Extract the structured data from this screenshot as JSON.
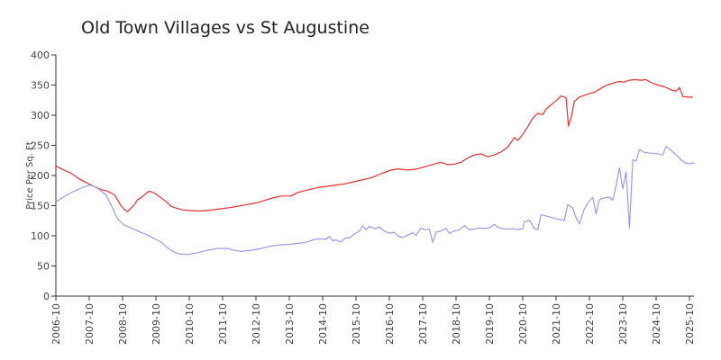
{
  "chart_data": {
    "type": "line",
    "title": "Old Town Villages vs St Augustine",
    "ylabel": "Price Per Sq. Ft",
    "xlabel": "",
    "ylim": [
      0,
      400
    ],
    "yticks": [
      0,
      50,
      100,
      150,
      200,
      250,
      300,
      350,
      400
    ],
    "xlim": [
      2006.75,
      2025.9
    ],
    "xticks": [
      "2006-10",
      "2007-10",
      "2008-10",
      "2009-10",
      "2010-10",
      "2011-10",
      "2012-10",
      "2013-10",
      "2014-10",
      "2015-10",
      "2016-10",
      "2017-10",
      "2018-10",
      "2019-10",
      "2020-10",
      "2021-10",
      "2022-10",
      "2023-10",
      "2024-10",
      "2025-10"
    ],
    "series": [
      {
        "color": "#e8302f",
        "points": [
          [
            2006.75,
            216
          ],
          [
            2006.95,
            210
          ],
          [
            2007.2,
            204
          ],
          [
            2007.4,
            196
          ],
          [
            2007.6,
            190
          ],
          [
            2007.85,
            183
          ],
          [
            2008.1,
            177
          ],
          [
            2008.3,
            174
          ],
          [
            2008.5,
            168
          ],
          [
            2008.6,
            160
          ],
          [
            2008.7,
            150
          ],
          [
            2008.8,
            144
          ],
          [
            2008.9,
            140
          ],
          [
            2009.0,
            146
          ],
          [
            2009.1,
            151
          ],
          [
            2009.2,
            160
          ],
          [
            2009.3,
            163
          ],
          [
            2009.45,
            170
          ],
          [
            2009.55,
            174
          ],
          [
            2009.7,
            171
          ],
          [
            2009.85,
            165
          ],
          [
            2010.05,
            157
          ],
          [
            2010.2,
            149
          ],
          [
            2010.35,
            146
          ],
          [
            2010.55,
            143
          ],
          [
            2010.75,
            142
          ],
          [
            2011.0,
            141
          ],
          [
            2011.3,
            142
          ],
          [
            2011.6,
            144
          ],
          [
            2012.0,
            147
          ],
          [
            2012.4,
            151
          ],
          [
            2012.8,
            155
          ],
          [
            2013.2,
            162
          ],
          [
            2013.5,
            166
          ],
          [
            2013.8,
            166
          ],
          [
            2014.0,
            172
          ],
          [
            2014.3,
            176
          ],
          [
            2014.6,
            180
          ],
          [
            2015.0,
            183
          ],
          [
            2015.4,
            186
          ],
          [
            2015.8,
            191
          ],
          [
            2016.2,
            196
          ],
          [
            2016.5,
            203
          ],
          [
            2016.8,
            209
          ],
          [
            2017.0,
            211
          ],
          [
            2017.3,
            209
          ],
          [
            2017.6,
            211
          ],
          [
            2017.9,
            216
          ],
          [
            2018.1,
            219
          ],
          [
            2018.3,
            222
          ],
          [
            2018.5,
            218
          ],
          [
            2018.7,
            219
          ],
          [
            2018.9,
            222
          ],
          [
            2019.1,
            229
          ],
          [
            2019.3,
            234
          ],
          [
            2019.5,
            236
          ],
          [
            2019.7,
            231
          ],
          [
            2019.9,
            234
          ],
          [
            2020.1,
            239
          ],
          [
            2020.3,
            247
          ],
          [
            2020.5,
            263
          ],
          [
            2020.6,
            258
          ],
          [
            2020.75,
            268
          ],
          [
            2020.9,
            281
          ],
          [
            2021.05,
            295
          ],
          [
            2021.2,
            303
          ],
          [
            2021.35,
            301
          ],
          [
            2021.45,
            310
          ],
          [
            2021.6,
            317
          ],
          [
            2021.75,
            324
          ],
          [
            2021.9,
            332
          ],
          [
            2022.05,
            329
          ],
          [
            2022.12,
            282
          ],
          [
            2022.2,
            296
          ],
          [
            2022.3,
            323
          ],
          [
            2022.45,
            330
          ],
          [
            2022.6,
            333
          ],
          [
            2022.75,
            336
          ],
          [
            2022.9,
            338
          ],
          [
            2023.05,
            343
          ],
          [
            2023.2,
            348
          ],
          [
            2023.35,
            351
          ],
          [
            2023.5,
            354
          ],
          [
            2023.65,
            356
          ],
          [
            2023.8,
            355
          ],
          [
            2023.95,
            358
          ],
          [
            2024.1,
            359
          ],
          [
            2024.3,
            358
          ],
          [
            2024.45,
            359
          ],
          [
            2024.6,
            354
          ],
          [
            2024.8,
            350
          ],
          [
            2025.0,
            347
          ],
          [
            2025.2,
            342
          ],
          [
            2025.35,
            340
          ],
          [
            2025.45,
            346
          ],
          [
            2025.55,
            331
          ],
          [
            2025.7,
            330
          ],
          [
            2025.85,
            330
          ]
        ]
      },
      {
        "color": "#9a9aee",
        "points": [
          [
            2006.75,
            156
          ],
          [
            2007.0,
            165
          ],
          [
            2007.3,
            174
          ],
          [
            2007.55,
            180
          ],
          [
            2007.75,
            184
          ],
          [
            2007.9,
            182
          ],
          [
            2008.05,
            177
          ],
          [
            2008.25,
            168
          ],
          [
            2008.4,
            152
          ],
          [
            2008.5,
            140
          ],
          [
            2008.6,
            128
          ],
          [
            2008.8,
            118
          ],
          [
            2009.0,
            113
          ],
          [
            2009.25,
            107
          ],
          [
            2009.5,
            101
          ],
          [
            2009.75,
            94
          ],
          [
            2009.95,
            88
          ],
          [
            2010.1,
            80
          ],
          [
            2010.25,
            74
          ],
          [
            2010.45,
            70
          ],
          [
            2010.7,
            69
          ],
          [
            2011.0,
            72
          ],
          [
            2011.3,
            76
          ],
          [
            2011.6,
            79
          ],
          [
            2011.9,
            79
          ],
          [
            2012.1,
            76
          ],
          [
            2012.3,
            74
          ],
          [
            2012.6,
            76
          ],
          [
            2012.9,
            79
          ],
          [
            2013.2,
            83
          ],
          [
            2013.5,
            85
          ],
          [
            2013.8,
            86
          ],
          [
            2014.1,
            88
          ],
          [
            2014.3,
            90
          ],
          [
            2014.5,
            94
          ],
          [
            2014.7,
            95
          ],
          [
            2014.85,
            94
          ],
          [
            2014.95,
            99
          ],
          [
            2015.05,
            92
          ],
          [
            2015.15,
            93
          ],
          [
            2015.3,
            90
          ],
          [
            2015.45,
            97
          ],
          [
            2015.55,
            96
          ],
          [
            2015.7,
            103
          ],
          [
            2015.85,
            108
          ],
          [
            2015.95,
            117
          ],
          [
            2016.05,
            110
          ],
          [
            2016.15,
            116
          ],
          [
            2016.3,
            112
          ],
          [
            2016.45,
            114
          ],
          [
            2016.6,
            108
          ],
          [
            2016.75,
            104
          ],
          [
            2016.9,
            106
          ],
          [
            2017.0,
            100
          ],
          [
            2017.15,
            97
          ],
          [
            2017.3,
            101
          ],
          [
            2017.45,
            105
          ],
          [
            2017.55,
            101
          ],
          [
            2017.7,
            113
          ],
          [
            2017.8,
            110
          ],
          [
            2017.95,
            111
          ],
          [
            2018.05,
            89
          ],
          [
            2018.15,
            106
          ],
          [
            2018.3,
            108
          ],
          [
            2018.45,
            112
          ],
          [
            2018.55,
            104
          ],
          [
            2018.7,
            108
          ],
          [
            2018.85,
            110
          ],
          [
            2019.0,
            117
          ],
          [
            2019.15,
            110
          ],
          [
            2019.3,
            111
          ],
          [
            2019.45,
            113
          ],
          [
            2019.6,
            112
          ],
          [
            2019.75,
            113
          ],
          [
            2019.9,
            119
          ],
          [
            2020.0,
            114
          ],
          [
            2020.15,
            112
          ],
          [
            2020.3,
            111
          ],
          [
            2020.45,
            112
          ],
          [
            2020.6,
            110
          ],
          [
            2020.75,
            112
          ],
          [
            2020.8,
            123
          ],
          [
            2020.95,
            126
          ],
          [
            2021.1,
            112
          ],
          [
            2021.2,
            110
          ],
          [
            2021.3,
            135
          ],
          [
            2021.45,
            133
          ],
          [
            2021.65,
            130
          ],
          [
            2021.85,
            127
          ],
          [
            2022.0,
            126
          ],
          [
            2022.1,
            152
          ],
          [
            2022.25,
            146
          ],
          [
            2022.35,
            130
          ],
          [
            2022.45,
            120
          ],
          [
            2022.6,
            145
          ],
          [
            2022.75,
            158
          ],
          [
            2022.85,
            164
          ],
          [
            2022.95,
            136
          ],
          [
            2023.05,
            160
          ],
          [
            2023.2,
            163
          ],
          [
            2023.35,
            164
          ],
          [
            2023.45,
            159
          ],
          [
            2023.55,
            183
          ],
          [
            2023.65,
            213
          ],
          [
            2023.75,
            178
          ],
          [
            2023.85,
            206
          ],
          [
            2023.95,
            113
          ],
          [
            2024.05,
            226
          ],
          [
            2024.15,
            224
          ],
          [
            2024.25,
            243
          ],
          [
            2024.4,
            238
          ],
          [
            2024.6,
            237
          ],
          [
            2024.8,
            236
          ],
          [
            2024.95,
            234
          ],
          [
            2025.05,
            248
          ],
          [
            2025.2,
            242
          ],
          [
            2025.35,
            234
          ],
          [
            2025.5,
            226
          ],
          [
            2025.65,
            220
          ],
          [
            2025.8,
            220
          ],
          [
            2025.9,
            221
          ]
        ]
      }
    ]
  }
}
